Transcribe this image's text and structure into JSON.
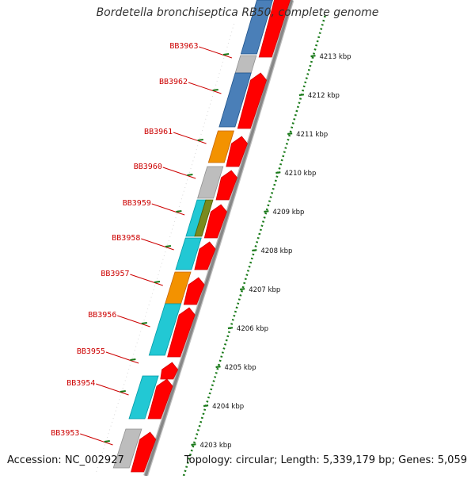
{
  "title": "Bordetella bronchiseptica RB50, complete genome",
  "footer": {
    "accession": "Accession: NC_002927",
    "summary": "Topology: circular; Length: 5,339,179 bp; Genes: 5,059"
  },
  "colors": {
    "gene_label": "#cc0000",
    "leader_line": "#cc0000",
    "forward_arrow": "#ff0000",
    "backbone": "#888888",
    "ruler": "#1a7a1a",
    "cog_blue": "#4a7fb8",
    "cog_grey": "#bdbdbd",
    "cog_orange": "#f39200",
    "cog_cyan": "#22c8d4",
    "cog_olive": "#7a8a1e"
  },
  "ruler": {
    "labels": [
      "4213 kbp",
      "4212 kbp",
      "4211 kbp",
      "4210 kbp",
      "4209 kbp",
      "4208 kbp",
      "4207 kbp",
      "4206 kbp",
      "4205 kbp",
      "4204 kbp",
      "4203 kbp"
    ]
  },
  "genes": [
    {
      "name": "BB3963",
      "category": "cog_grey"
    },
    {
      "name": "BB3962",
      "category": "cog_blue"
    },
    {
      "name": "BB3961",
      "category": "cog_orange"
    },
    {
      "name": "BB3960",
      "category": "cog_grey"
    },
    {
      "name": "BB3959",
      "category": "cog_cyan",
      "secondary": "cog_olive"
    },
    {
      "name": "BB3958",
      "category": "cog_cyan"
    },
    {
      "name": "BB3957",
      "category": "cog_orange"
    },
    {
      "name": "BB3956",
      "category": "cog_cyan"
    },
    {
      "name": "BB3955",
      "category": "none"
    },
    {
      "name": "BB3954",
      "category": "cog_cyan"
    },
    {
      "name": "BB3953",
      "category": "cog_grey"
    }
  ]
}
